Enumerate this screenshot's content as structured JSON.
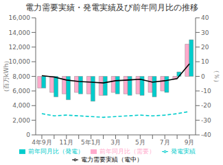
{
  "chart_data": {
    "type": "combo",
    "title": "電力需要実績・発電実績及び前年同月比の推移",
    "ylabel": "（百万kWh）",
    "y2label": "（％）",
    "categories": [
      "4年9月",
      null,
      "11月",
      null,
      "5年1月",
      null,
      "3月",
      null,
      "5月",
      null,
      "7月",
      null,
      "9月"
    ],
    "series": [
      {
        "name": "電力需要実績（電中）",
        "type": "line",
        "color": "#000000",
        "line_style": "solid",
        "values": [
          8100,
          7900,
          7500,
          7300,
          7200,
          7100,
          7400,
          7500,
          7600,
          7200,
          7400,
          7700,
          9700
        ]
      },
      {
        "name": "発電実績",
        "type": "line",
        "color": "#00cccc",
        "line_style": "dashed",
        "values": [
          2900,
          2600,
          2700,
          2600,
          2500,
          2400,
          2500,
          2600,
          2700,
          2600,
          2700,
          2900,
          3200
        ]
      },
      {
        "name": "前年同月比（需要）",
        "type": "bar",
        "axis": "y2",
        "color": "#ffaacc",
        "values": [
          -8,
          -11,
          -12,
          -11,
          -12,
          -13,
          -11,
          -12,
          -12,
          -11,
          -10,
          -2,
          22
        ]
      },
      {
        "name": "前年同月比（発電）",
        "type": "bar",
        "axis": "y2",
        "color": "#00cccc",
        "values": [
          -8,
          -14,
          -16,
          -12,
          -17,
          -13,
          -12,
          -13,
          -13,
          -14,
          -11,
          3,
          25
        ]
      }
    ],
    "ylim": [
      0,
      16000
    ],
    "yticks": [
      0,
      {
        "value": 2000,
        "label": "2,000"
      },
      {
        "value": 4000,
        "label": "4,000"
      },
      {
        "value": 6000,
        "label": "6,000"
      },
      {
        "value": 8000,
        "label": "8,000"
      },
      {
        "value": 10000,
        "label": "10,000"
      },
      {
        "value": 12000,
        "label": "12,000"
      },
      {
        "value": 14000,
        "label": "14,000"
      },
      {
        "value": 16000,
        "label": "16,000"
      }
    ],
    "y2lim": [
      -40,
      40
    ],
    "y2ticks": [
      -40,
      -30,
      -20,
      -10,
      0,
      10,
      20,
      30,
      40
    ],
    "grid": false,
    "legend": "bottom"
  }
}
